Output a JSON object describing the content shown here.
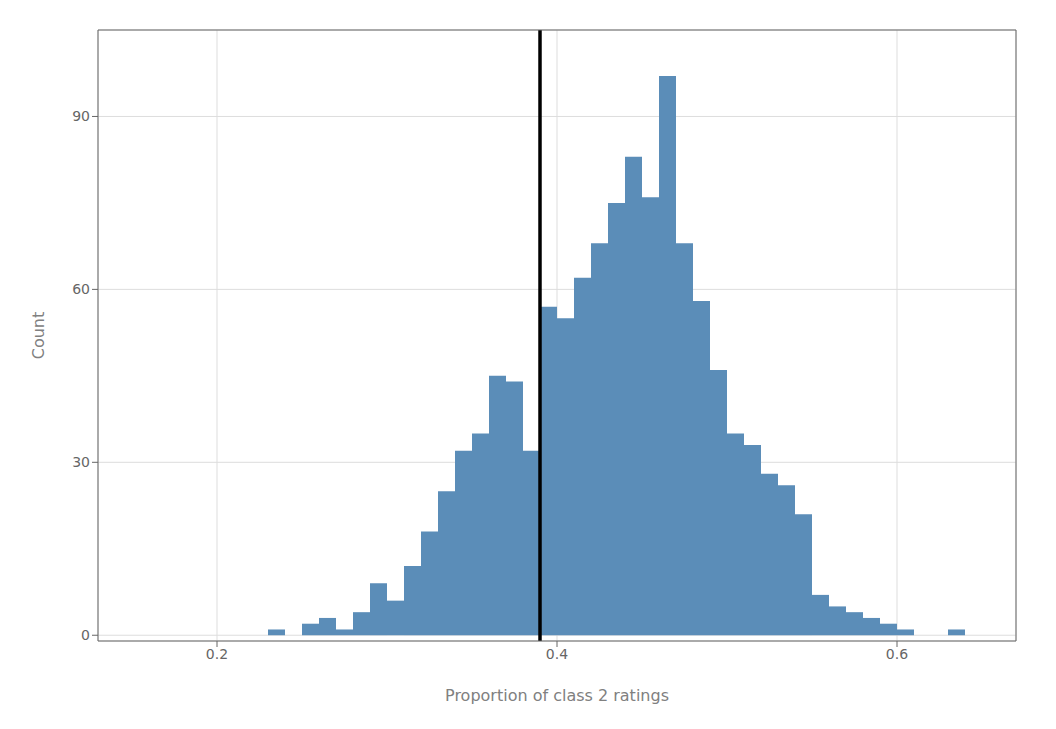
{
  "chart_data": {
    "type": "histogram",
    "title": "",
    "xlabel": "Proportion of class 2 ratings",
    "ylabel": "Count",
    "bins": [
      0.23,
      0.24,
      0.25,
      0.26,
      0.27,
      0.28,
      0.29,
      0.3,
      0.31,
      0.32,
      0.33,
      0.34,
      0.35,
      0.36,
      0.37,
      0.38,
      0.39,
      0.4,
      0.41,
      0.42,
      0.43,
      0.44,
      0.45,
      0.46,
      0.47,
      0.48,
      0.49,
      0.5,
      0.51,
      0.52,
      0.53,
      0.54,
      0.55,
      0.56,
      0.57,
      0.58,
      0.59,
      0.6,
      0.61,
      0.62,
      0.63,
      0.64
    ],
    "counts": [
      1,
      0,
      2,
      3,
      1,
      4,
      9,
      6,
      12,
      18,
      25,
      32,
      35,
      45,
      44,
      32,
      57,
      55,
      62,
      68,
      75,
      83,
      76,
      97,
      68,
      58,
      46,
      35,
      33,
      28,
      26,
      21,
      7,
      5,
      4,
      3,
      2,
      1,
      0,
      0,
      1
    ],
    "color": "#5b8db8",
    "vline": {
      "x": 0.39,
      "color": "black"
    },
    "xlim": [
      0.13,
      0.67
    ],
    "ylim": [
      -1,
      105
    ],
    "xticks": [
      0.2,
      0.4,
      0.6
    ],
    "yticks": [
      0,
      30,
      60,
      90
    ],
    "grid": true
  }
}
